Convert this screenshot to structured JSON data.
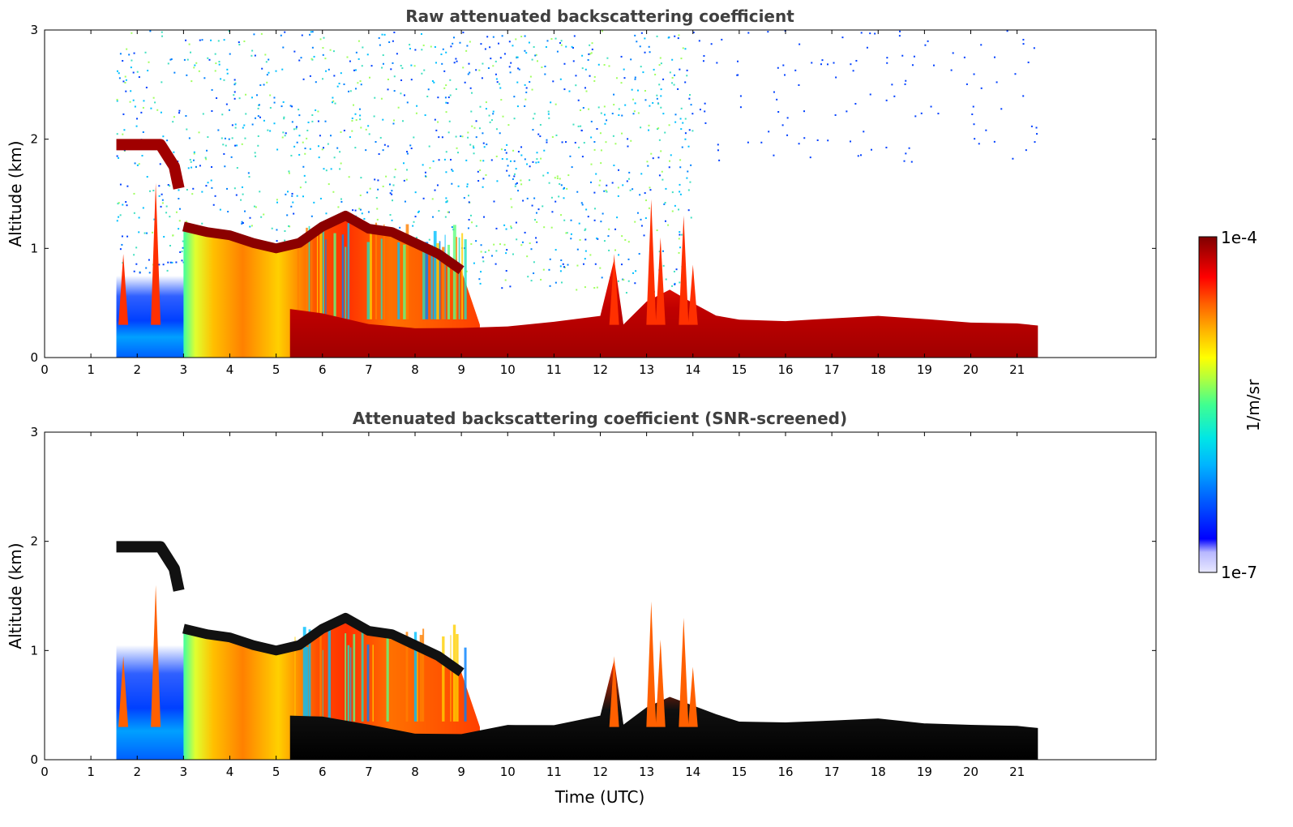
{
  "chart_data": [
    {
      "type": "heatmap",
      "title": "Raw attenuated backscattering coefficient",
      "ylabel": "Altitude (km)",
      "xlabel": "",
      "xlim": [
        0,
        24
      ],
      "ylim": [
        0,
        3
      ],
      "x_ticks": [
        0,
        1,
        2,
        3,
        4,
        5,
        6,
        7,
        8,
        9,
        10,
        11,
        12,
        13,
        14,
        15,
        16,
        17,
        18,
        19,
        20,
        21
      ],
      "y_ticks": [
        0,
        1,
        2,
        3
      ],
      "data_time_range": [
        1.55,
        21.45
      ],
      "layers": [
        {
          "name": "aerosol layer top",
          "points": [
            [
              3.0,
              1.2
            ],
            [
              3.5,
              1.15
            ],
            [
              4.0,
              1.12
            ],
            [
              4.5,
              1.05
            ],
            [
              5.0,
              1.0
            ],
            [
              5.5,
              1.05
            ],
            [
              6.0,
              1.2
            ],
            [
              6.5,
              1.3
            ],
            [
              7.0,
              1.18
            ],
            [
              7.5,
              1.15
            ],
            [
              8.0,
              1.05
            ],
            [
              8.5,
              0.95
            ],
            [
              9.0,
              0.8
            ]
          ]
        },
        {
          "name": "elevated layer",
          "points": [
            [
              1.55,
              1.95
            ],
            [
              2.0,
              1.95
            ],
            [
              2.5,
              1.95
            ],
            [
              2.8,
              1.75
            ],
            [
              2.9,
              1.55
            ]
          ]
        },
        {
          "name": "boundary layer top",
          "points": [
            [
              5.3,
              0.42
            ],
            [
              6.0,
              0.38
            ],
            [
              7.0,
              0.3
            ],
            [
              8.0,
              0.25
            ],
            [
              9.0,
              0.25
            ],
            [
              10.0,
              0.3
            ],
            [
              11.0,
              0.32
            ],
            [
              12.0,
              0.4
            ],
            [
              12.3,
              0.9
            ],
            [
              12.5,
              0.3
            ],
            [
              13.0,
              0.5
            ],
            [
              13.5,
              0.6
            ],
            [
              14.0,
              0.5
            ],
            [
              14.5,
              0.4
            ],
            [
              15.0,
              0.35
            ],
            [
              16.0,
              0.35
            ],
            [
              17.0,
              0.35
            ],
            [
              18.0,
              0.38
            ],
            [
              19.0,
              0.35
            ],
            [
              20.0,
              0.32
            ],
            [
              21.0,
              0.3
            ],
            [
              21.45,
              0.3
            ]
          ]
        }
      ]
    },
    {
      "type": "heatmap",
      "title": "Attenuated backscattering coefficient (SNR-screened)",
      "ylabel": "Altitude (km)",
      "xlabel": "Time (UTC)",
      "xlim": [
        0,
        24
      ],
      "ylim": [
        0,
        3
      ],
      "x_ticks": [
        0,
        1,
        2,
        3,
        4,
        5,
        6,
        7,
        8,
        9,
        10,
        11,
        12,
        13,
        14,
        15,
        16,
        17,
        18,
        19,
        20,
        21
      ],
      "y_ticks": [
        0,
        1,
        2,
        3
      ],
      "data_time_range": [
        1.55,
        21.45
      ]
    }
  ],
  "colorbar": {
    "label": "1/m/sr",
    "max_label": "1e-4",
    "min_label": "1e-7",
    "scale": "log",
    "colormap": [
      "#e6e6ff",
      "#b3b3ff",
      "#0000ff",
      "#0060ff",
      "#00b0ff",
      "#00e0e0",
      "#40ff80",
      "#c0ff40",
      "#ffff00",
      "#ffb000",
      "#ff6000",
      "#ff0000",
      "#b00000",
      "#7f0000"
    ]
  }
}
